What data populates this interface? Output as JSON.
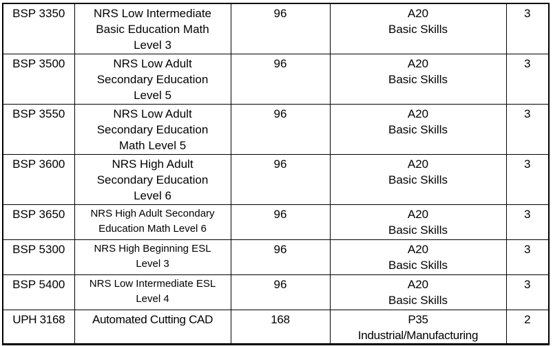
{
  "meta": {
    "background_color": "#ffffff",
    "border_color": "#000000",
    "text_color": "#000000"
  },
  "table": {
    "description": "course listing table",
    "columns": [
      "course_code",
      "course_title",
      "hours",
      "program_area",
      "credits"
    ],
    "rows": [
      {
        "code": "BSP 3350",
        "title": "NRS Low Intermediate\nBasic Education Math\nLevel 3",
        "hours": "96",
        "program": "A20\nBasic Skills",
        "credits": "3"
      },
      {
        "code": "BSP 3500",
        "title": "NRS Low Adult\nSecondary Education\nLevel 5",
        "hours": "96",
        "program": "A20\nBasic Skills",
        "credits": "3"
      },
      {
        "code": "BSP 3550",
        "title": "NRS Low Adult\nSecondary Education\nMath Level 5",
        "hours": "96",
        "program": "A20\nBasic Skills",
        "credits": "3"
      },
      {
        "code": "BSP 3600",
        "title": "NRS High Adult\nSecondary Education\nLevel 6",
        "hours": "96",
        "program": "A20\nBasic Skills",
        "credits": "3"
      },
      {
        "code": "BSP 3650",
        "title": "NRS High Adult Secondary\nEducation Math Level 6",
        "hours": "96",
        "program": "A20\nBasic Skills",
        "credits": "3"
      },
      {
        "code": "BSP 5300",
        "title": "NRS High Beginning ESL\nLevel 3",
        "hours": "96",
        "program": "A20\nBasic Skills",
        "credits": "3"
      },
      {
        "code": "BSP 5400",
        "title": "NRS Low Intermediate ESL\nLevel 4",
        "hours": "96",
        "program": "A20\nBasic Skills",
        "credits": "3"
      },
      {
        "code": "UPH 3168",
        "title": "Automated Cutting CAD",
        "hours": "168",
        "program": "P35\nIndustrial/Manufacturing",
        "credits": "2"
      }
    ]
  }
}
